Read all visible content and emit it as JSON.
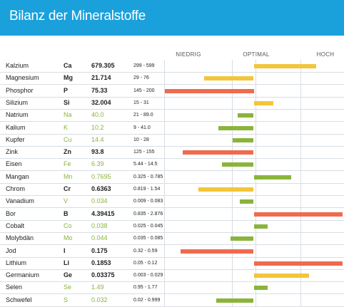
{
  "header": {
    "title": "Bilanz der Mineralstoffe"
  },
  "scale": {
    "low": "NIEDRIG",
    "optimal": "OPTIMAL",
    "high": "HOCH"
  },
  "colors": {
    "header": "#1aa0db",
    "green": "#8ab43c",
    "yellow": "#f3c53a",
    "red": "#ef6a4e"
  },
  "rows": [
    {
      "name": "Kalzium",
      "symbol": "Ca",
      "value": "679.305",
      "range": "299 - 599",
      "status": "warn",
      "level": {
        "from": 0.5,
        "to": 0.85,
        "color": "yellow"
      }
    },
    {
      "name": "Magnesium",
      "symbol": "Mg",
      "value": "21.714",
      "range": "29 - 76",
      "status": "warn",
      "level": {
        "from": 0.22,
        "to": 0.5,
        "color": "yellow"
      }
    },
    {
      "name": "Phosphor",
      "symbol": "P",
      "value": "75.33",
      "range": "145 - 200",
      "status": "warn",
      "level": {
        "from": 0.0,
        "to": 0.5,
        "color": "red"
      }
    },
    {
      "name": "Silizium",
      "symbol": "Si",
      "value": "32.004",
      "range": "15 - 31",
      "status": "warn",
      "level": {
        "from": 0.5,
        "to": 0.61,
        "color": "yellow"
      }
    },
    {
      "name": "Natrium",
      "symbol": "Na",
      "value": "40.0",
      "range": "21 - 89.0",
      "status": "ok",
      "level": {
        "from": 0.41,
        "to": 0.5,
        "color": "green"
      }
    },
    {
      "name": "Kalium",
      "symbol": "K",
      "value": "10.2",
      "range": "9 - 41.0",
      "status": "ok",
      "level": {
        "from": 0.3,
        "to": 0.5,
        "color": "green"
      }
    },
    {
      "name": "Kupfer",
      "symbol": "Cu",
      "value": "14.4",
      "range": "10 - 28",
      "status": "ok",
      "level": {
        "from": 0.38,
        "to": 0.5,
        "color": "green"
      }
    },
    {
      "name": "Zink",
      "symbol": "Zn",
      "value": "93.8",
      "range": "125 - 155",
      "status": "warn",
      "level": {
        "from": 0.1,
        "to": 0.5,
        "color": "red"
      }
    },
    {
      "name": "Eisen",
      "symbol": "Fe",
      "value": "6.39",
      "range": "5.44 - 14.5",
      "status": "ok",
      "level": {
        "from": 0.32,
        "to": 0.5,
        "color": "green"
      }
    },
    {
      "name": "Mangan",
      "symbol": "Mn",
      "value": "0.7695",
      "range": "0.325 - 0.785",
      "status": "ok",
      "level": {
        "from": 0.5,
        "to": 0.71,
        "color": "green"
      }
    },
    {
      "name": "Chrom",
      "symbol": "Cr",
      "value": "0.6363",
      "range": "0.819 - 1.54",
      "status": "warn",
      "level": {
        "from": 0.19,
        "to": 0.5,
        "color": "yellow"
      }
    },
    {
      "name": "Vanadium",
      "symbol": "V",
      "value": "0.034",
      "range": "0.009 - 0.083",
      "status": "ok",
      "level": {
        "from": 0.42,
        "to": 0.5,
        "color": "green"
      }
    },
    {
      "name": "Bor",
      "symbol": "B",
      "value": "4.39415",
      "range": "0.835 - 2.876",
      "status": "warn",
      "level": {
        "from": 0.5,
        "to": 1.0,
        "color": "red"
      }
    },
    {
      "name": "Cobalt",
      "symbol": "Co",
      "value": "0.038",
      "range": "0.025 - 0.045",
      "status": "ok",
      "level": {
        "from": 0.5,
        "to": 0.58,
        "color": "green"
      }
    },
    {
      "name": "Molybdän",
      "symbol": "Mo",
      "value": "0.044",
      "range": "0.035 - 0.085",
      "status": "ok",
      "level": {
        "from": 0.37,
        "to": 0.5,
        "color": "green"
      }
    },
    {
      "name": "Jod",
      "symbol": "I",
      "value": "0.175",
      "range": "0.32 - 0.59",
      "status": "warn",
      "level": {
        "from": 0.09,
        "to": 0.5,
        "color": "red"
      }
    },
    {
      "name": "Lithium",
      "symbol": "Li",
      "value": "0.1853",
      "range": "0.05 - 0.12",
      "status": "warn",
      "level": {
        "from": 0.5,
        "to": 1.0,
        "color": "red"
      }
    },
    {
      "name": "Germanium",
      "symbol": "Ge",
      "value": "0.03375",
      "range": "0.003 - 0.029",
      "status": "warn",
      "level": {
        "from": 0.5,
        "to": 0.81,
        "color": "yellow"
      }
    },
    {
      "name": "Selen",
      "symbol": "Se",
      "value": "1.49",
      "range": "0.95 - 1.77",
      "status": "ok",
      "level": {
        "from": 0.5,
        "to": 0.58,
        "color": "green"
      }
    },
    {
      "name": "Schwefel",
      "symbol": "S",
      "value": "0.032",
      "range": "0.02 - 0.999",
      "status": "ok",
      "level": {
        "from": 0.29,
        "to": 0.5,
        "color": "green"
      }
    }
  ]
}
